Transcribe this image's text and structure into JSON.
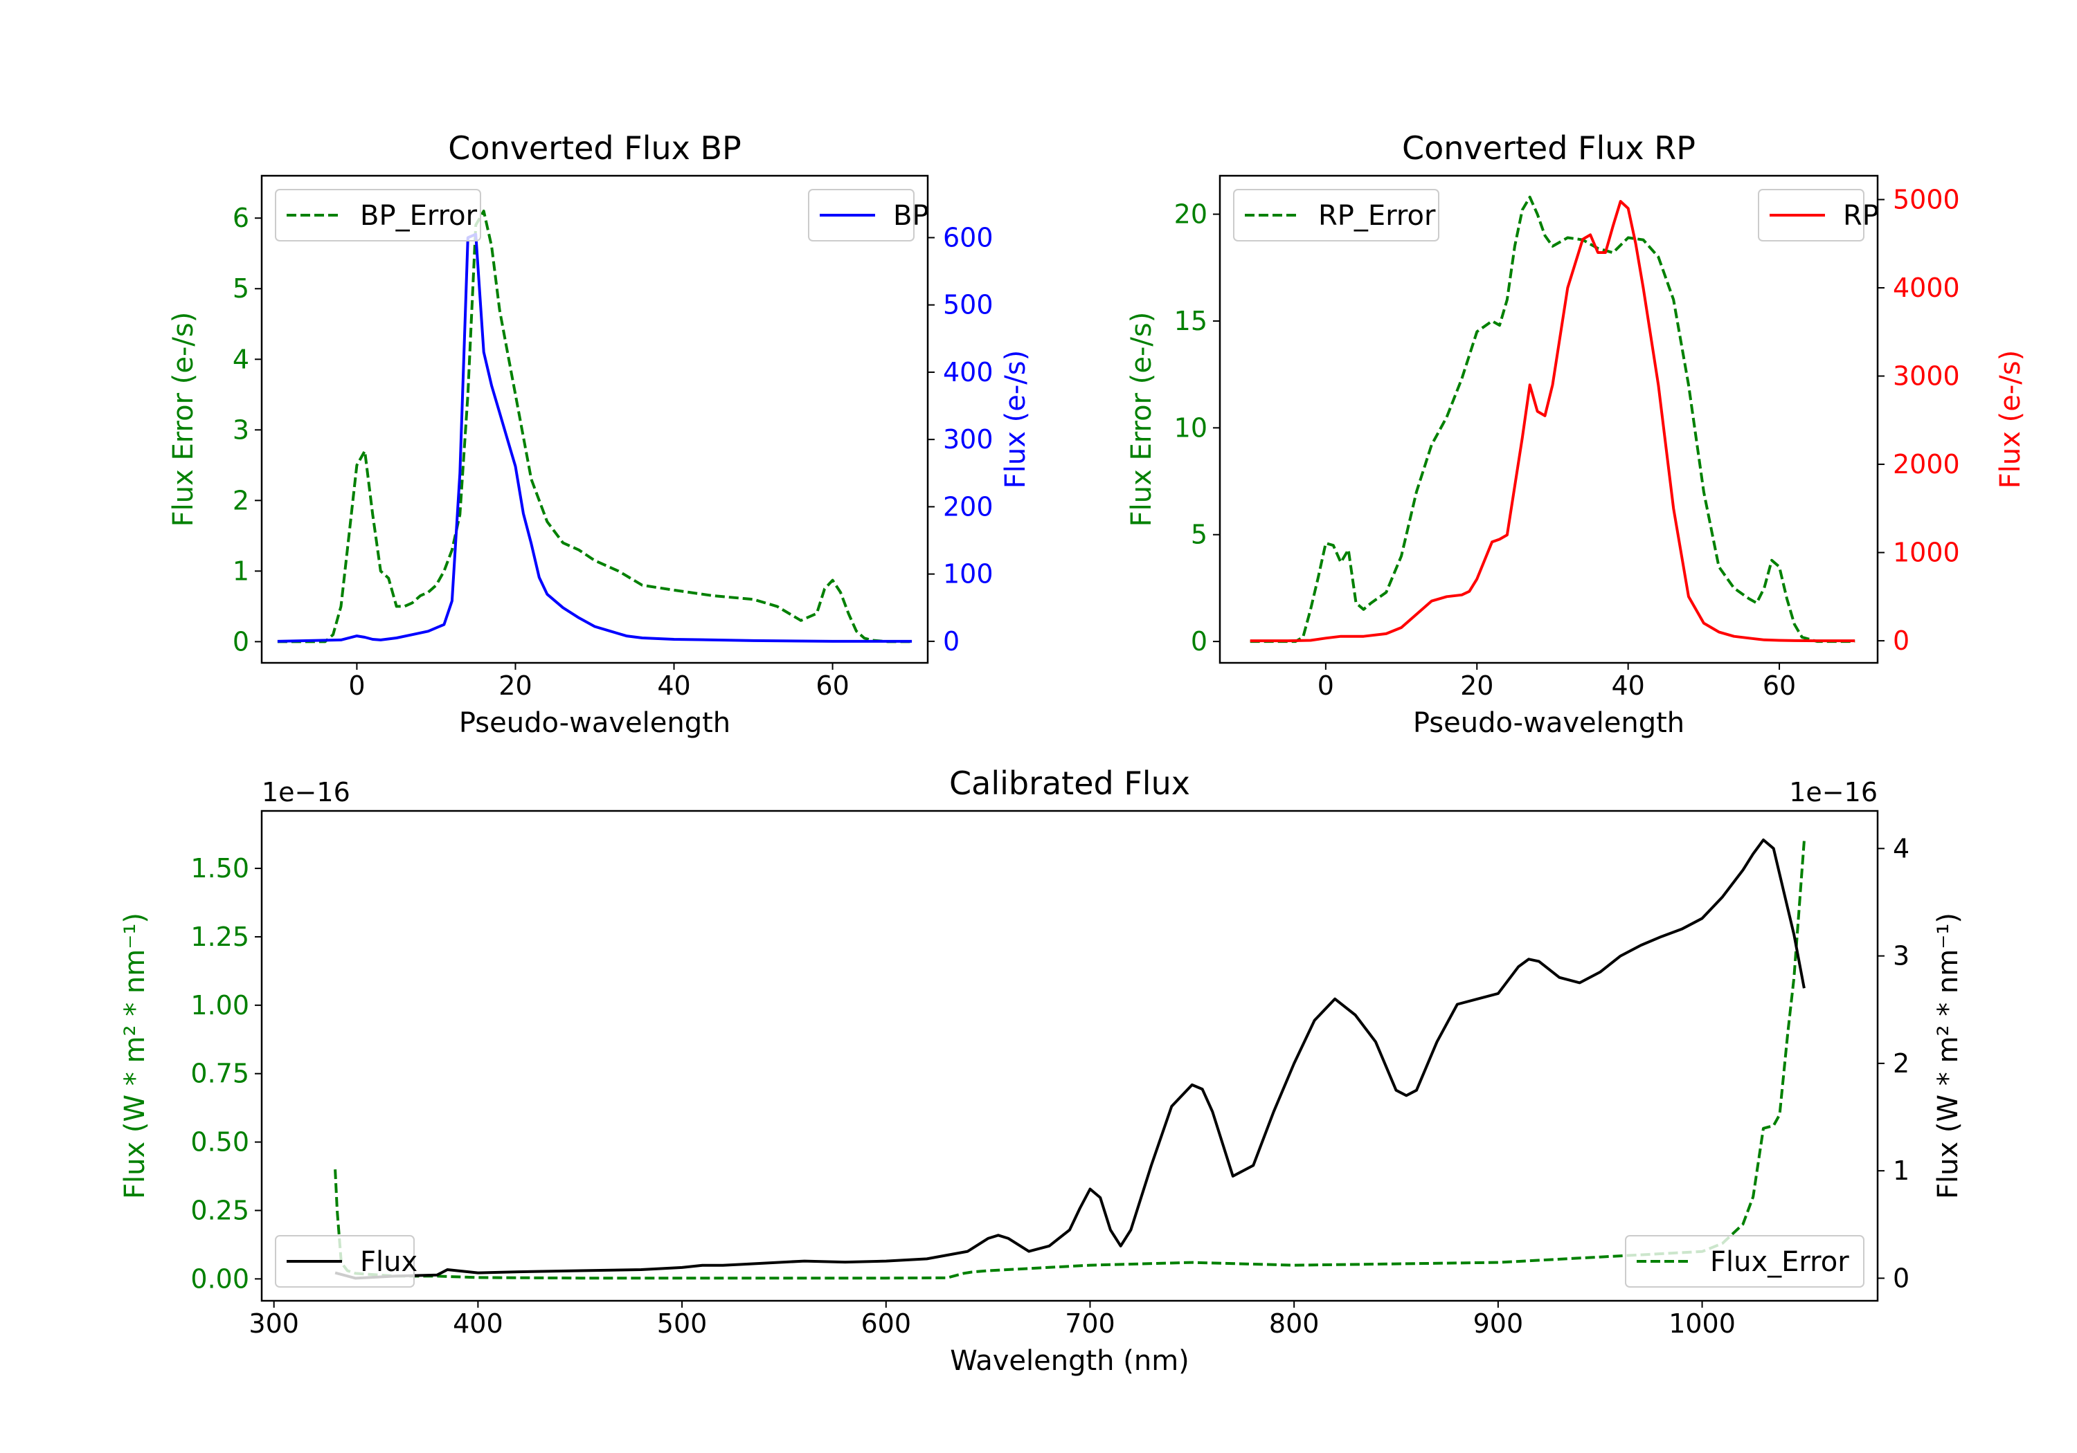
{
  "chart_data": [
    {
      "type": "line",
      "title": "Converted Flux BP",
      "xlabel": "Pseudo-wavelength",
      "ylabel_left": "Flux Error (e-/s)",
      "ylabel_right": "Flux (e-/s)",
      "xlim": [
        -12,
        72
      ],
      "ylim_left": [
        -0.3,
        6.6
      ],
      "ylim_right": [
        -32,
        692
      ],
      "xticks": [
        "0",
        "20",
        "40",
        "60"
      ],
      "xtick_values": [
        0,
        20,
        40,
        60
      ],
      "yticks_left": [
        "0",
        "1",
        "2",
        "3",
        "4",
        "5",
        "6"
      ],
      "yticks_left_values": [
        0,
        1,
        2,
        3,
        4,
        5,
        6
      ],
      "yticks_right": [
        "0",
        "100",
        "200",
        "300",
        "400",
        "500",
        "600"
      ],
      "yticks_right_values": [
        0,
        100,
        200,
        300,
        400,
        500,
        600
      ],
      "color_left": "#008000",
      "color_right": "#0000ff",
      "series": [
        {
          "name": "BP_Error",
          "axis": "left",
          "style": "dashed",
          "color": "#008000",
          "x": [
            -10,
            -4,
            -3,
            -2,
            -1,
            0,
            1,
            2,
            3,
            4,
            5,
            6,
            7,
            8,
            9,
            10,
            11,
            12,
            13,
            14,
            15,
            16,
            17,
            18,
            19,
            20,
            22,
            24,
            26,
            28,
            30,
            33,
            36,
            40,
            45,
            50,
            53,
            56,
            58,
            59,
            60,
            61,
            62,
            63,
            64,
            65,
            67,
            70
          ],
          "values": [
            0,
            0,
            0.1,
            0.5,
            1.5,
            2.5,
            2.7,
            1.8,
            1.0,
            0.9,
            0.5,
            0.5,
            0.55,
            0.65,
            0.7,
            0.8,
            1.0,
            1.3,
            1.8,
            3.5,
            5.9,
            6.1,
            5.6,
            4.7,
            4.1,
            3.5,
            2.3,
            1.7,
            1.4,
            1.3,
            1.15,
            1.0,
            0.8,
            0.73,
            0.65,
            0.6,
            0.5,
            0.3,
            0.4,
            0.75,
            0.87,
            0.7,
            0.4,
            0.15,
            0.05,
            0.02,
            0,
            0
          ]
        },
        {
          "name": "BP",
          "axis": "right",
          "style": "solid",
          "color": "#0000ff",
          "x": [
            -10,
            -2,
            0,
            1,
            2,
            3,
            5,
            7,
            9,
            11,
            12,
            13,
            14,
            15,
            16,
            17,
            18,
            19,
            20,
            21,
            22,
            23,
            24,
            26,
            28,
            30,
            32,
            34,
            36,
            40,
            45,
            50,
            60,
            70
          ],
          "values": [
            0,
            2,
            8,
            6,
            3,
            2,
            5,
            10,
            15,
            25,
            60,
            250,
            600,
            605,
            430,
            380,
            340,
            300,
            260,
            190,
            145,
            95,
            70,
            50,
            35,
            22,
            15,
            8,
            5,
            3,
            2,
            1,
            0,
            0
          ]
        }
      ]
    },
    {
      "type": "line",
      "title": "Converted Flux RP",
      "xlabel": "Pseudo-wavelength",
      "ylabel_left": "Flux Error (e-/s)",
      "ylabel_right": "Flux (e-/s)",
      "xlim": [
        -14,
        73
      ],
      "ylim_left": [
        -1,
        21.8
      ],
      "ylim_right": [
        -250,
        5270
      ],
      "xticks": [
        "0",
        "20",
        "40",
        "60"
      ],
      "xtick_values": [
        0,
        20,
        40,
        60
      ],
      "yticks_left": [
        "0",
        "5",
        "10",
        "15",
        "20"
      ],
      "yticks_left_values": [
        0,
        5,
        10,
        15,
        20
      ],
      "yticks_right": [
        "0",
        "1000",
        "2000",
        "3000",
        "4000",
        "5000"
      ],
      "yticks_right_values": [
        0,
        1000,
        2000,
        3000,
        4000,
        5000
      ],
      "color_left": "#008000",
      "color_right": "#ff0000",
      "series": [
        {
          "name": "RP_Error",
          "axis": "left",
          "style": "dashed",
          "color": "#008000",
          "x": [
            -10,
            -4,
            -3,
            -2,
            -1,
            0,
            1,
            2,
            3,
            4,
            5,
            6,
            8,
            10,
            12,
            14,
            16,
            18,
            20,
            22,
            23,
            24,
            25,
            26,
            27,
            28,
            29,
            30,
            32,
            34,
            36,
            38,
            40,
            42,
            44,
            46,
            48,
            50,
            52,
            54,
            56,
            57,
            58,
            59,
            60,
            61,
            62,
            63,
            65,
            70
          ],
          "values": [
            0,
            0,
            0.2,
            1.5,
            3.0,
            4.6,
            4.5,
            3.7,
            4.3,
            1.8,
            1.5,
            1.8,
            2.3,
            4.0,
            7.0,
            9.2,
            10.5,
            12.3,
            14.5,
            15.0,
            14.8,
            16.0,
            18.5,
            20.2,
            20.8,
            20.0,
            19.0,
            18.5,
            18.9,
            18.8,
            18.4,
            18.2,
            18.9,
            18.8,
            18.0,
            16.0,
            12.0,
            7.0,
            3.5,
            2.5,
            2.0,
            1.8,
            2.5,
            3.8,
            3.5,
            2.0,
            0.8,
            0.2,
            0,
            0
          ]
        },
        {
          "name": "RP",
          "axis": "right",
          "style": "solid",
          "color": "#ff0000",
          "x": [
            -10,
            -5,
            -2,
            0,
            2,
            5,
            8,
            10,
            12,
            14,
            16,
            18,
            19,
            20,
            22,
            23,
            24,
            26,
            27,
            28,
            29,
            30,
            32,
            34,
            35,
            36,
            37,
            38,
            39,
            40,
            41,
            42,
            44,
            46,
            48,
            50,
            52,
            54,
            56,
            58,
            60,
            62,
            65,
            70
          ],
          "values": [
            0,
            0,
            5,
            30,
            50,
            50,
            80,
            150,
            300,
            450,
            500,
            520,
            560,
            700,
            1120,
            1150,
            1200,
            2300,
            2900,
            2600,
            2550,
            2900,
            4000,
            4550,
            4600,
            4400,
            4400,
            4700,
            4980,
            4900,
            4500,
            4000,
            2900,
            1500,
            500,
            200,
            100,
            50,
            30,
            10,
            5,
            2,
            0,
            0
          ]
        }
      ]
    },
    {
      "type": "line",
      "title": "Calibrated Flux",
      "xlabel": "Wavelength (nm)",
      "ylabel_left": "Flux (W * m² * nm⁻¹)",
      "ylabel_right": "Flux (W * m² * nm⁻¹)",
      "offset_label_left": "1e−16",
      "offset_label_right": "1e−16",
      "xlim": [
        294,
        1086
      ],
      "ylim_left": [
        -0.08,
        1.71
      ],
      "ylim_right": [
        -0.21,
        4.35
      ],
      "xticks": [
        "300",
        "400",
        "500",
        "600",
        "700",
        "800",
        "900",
        "1000"
      ],
      "xtick_values": [
        300,
        400,
        500,
        600,
        700,
        800,
        900,
        1000
      ],
      "yticks_left": [
        "0.00",
        "0.25",
        "0.50",
        "0.75",
        "1.00",
        "1.25",
        "1.50"
      ],
      "yticks_left_values": [
        0,
        0.25,
        0.5,
        0.75,
        1.0,
        1.25,
        1.5
      ],
      "yticks_right": [
        "0",
        "1",
        "2",
        "3",
        "4"
      ],
      "yticks_right_values": [
        0,
        1,
        2,
        3,
        4
      ],
      "color_left": "#008000",
      "color_right": "#000000",
      "series": [
        {
          "name": "Flux_Error",
          "axis": "left",
          "style": "dashed",
          "color": "#008000",
          "x": [
            330,
            331,
            333,
            336,
            340,
            350,
            360,
            380,
            400,
            450,
            500,
            550,
            600,
            630,
            638,
            642,
            650,
            700,
            750,
            800,
            900,
            950,
            1000,
            1010,
            1020,
            1025,
            1030,
            1035,
            1038,
            1040,
            1042,
            1045,
            1047,
            1050
          ],
          "values": [
            0.4,
            0.25,
            0.06,
            0.03,
            0.02,
            0.015,
            0.01,
            0.01,
            0.005,
            0.003,
            0.003,
            0.003,
            0.003,
            0.004,
            0.02,
            0.025,
            0.03,
            0.05,
            0.06,
            0.05,
            0.06,
            0.08,
            0.1,
            0.13,
            0.2,
            0.3,
            0.55,
            0.56,
            0.6,
            0.75,
            0.9,
            1.1,
            1.3,
            1.6
          ]
        },
        {
          "name": "Flux",
          "axis": "right",
          "style": "solid",
          "color": "#000000",
          "x": [
            330,
            340,
            360,
            380,
            385,
            400,
            420,
            450,
            480,
            500,
            510,
            520,
            530,
            550,
            560,
            580,
            600,
            620,
            640,
            650,
            655,
            660,
            670,
            680,
            690,
            695,
            700,
            705,
            710,
            715,
            720,
            730,
            740,
            750,
            755,
            760,
            770,
            780,
            790,
            800,
            810,
            820,
            830,
            840,
            850,
            855,
            860,
            870,
            880,
            890,
            900,
            910,
            915,
            920,
            930,
            940,
            950,
            960,
            970,
            980,
            990,
            1000,
            1010,
            1020,
            1025,
            1030,
            1035,
            1040,
            1045,
            1050
          ],
          "values": [
            0.05,
            0.0,
            0.02,
            0.03,
            0.08,
            0.05,
            0.06,
            0.07,
            0.08,
            0.1,
            0.12,
            0.12,
            0.13,
            0.15,
            0.16,
            0.15,
            0.16,
            0.18,
            0.25,
            0.37,
            0.4,
            0.37,
            0.25,
            0.3,
            0.45,
            0.65,
            0.83,
            0.75,
            0.45,
            0.3,
            0.45,
            1.05,
            1.6,
            1.8,
            1.76,
            1.55,
            0.95,
            1.05,
            1.55,
            2.0,
            2.4,
            2.6,
            2.45,
            2.2,
            1.75,
            1.7,
            1.75,
            2.2,
            2.55,
            2.6,
            2.65,
            2.9,
            2.97,
            2.95,
            2.8,
            2.75,
            2.85,
            3.0,
            3.1,
            3.18,
            3.25,
            3.35,
            3.55,
            3.8,
            3.95,
            4.08,
            4.0,
            3.6,
            3.2,
            2.7
          ]
        }
      ]
    }
  ]
}
